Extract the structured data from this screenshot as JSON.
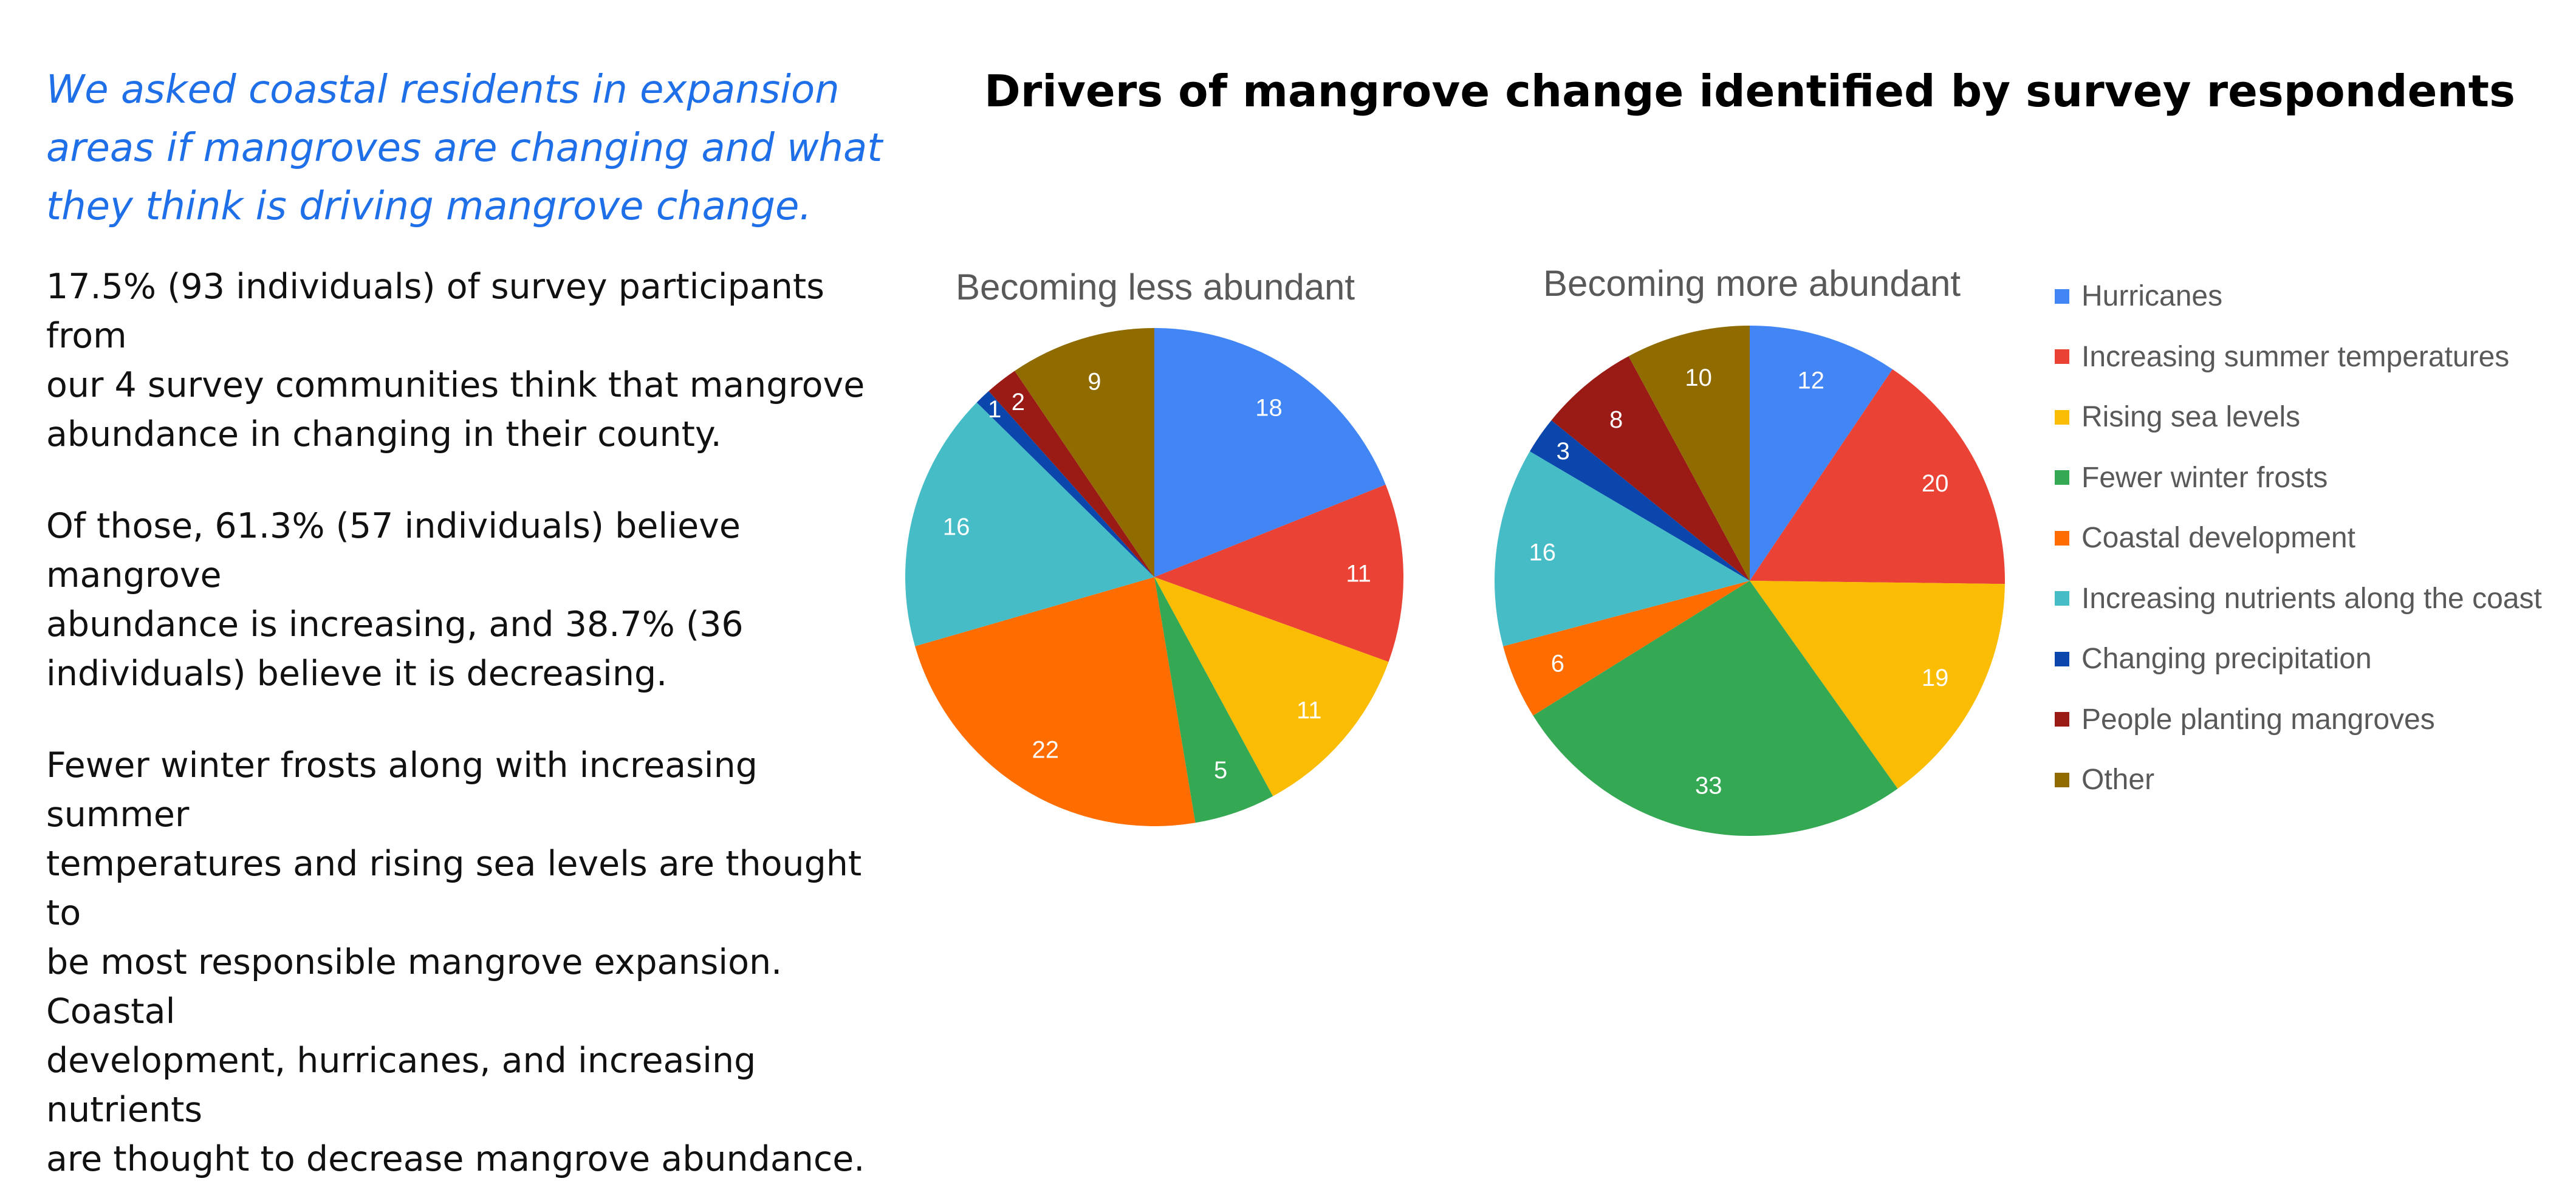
{
  "text_panel": {
    "intro": "We asked coastal residents in expansion\nareas if mangroves are changing and what\nthey think is driving mangrove change.",
    "paragraph_1": "17.5% (93 individuals) of survey participants from\nour 4 survey communities think that mangrove\nabundance in changing in their county.",
    "paragraph_2": "Of those, 61.3% (57 individuals) believe mangrove\nabundance is increasing, and 38.7% (36\nindividuals) believe it is decreasing.",
    "paragraph_3": "Fewer winter frosts along with increasing summer\ntemperatures and rising sea levels are thought to\nbe most responsible mangrove expansion. Coastal\ndevelopment, hurricanes, and increasing nutrients\nare thought to decrease mangrove abundance."
  },
  "chart_data": {
    "type": "pie",
    "title": "Drivers of mangrove change identified by survey respondents",
    "legend_position": "right",
    "categories": [
      "Hurricanes",
      "Increasing summer temperatures",
      "Rising sea levels",
      "Fewer winter frosts",
      "Coastal development",
      "Increasing nutrients along the coast",
      "Changing precipitation",
      "People planting mangroves",
      "Other"
    ],
    "colors": [
      "#4285f4",
      "#ea4335",
      "#fbbc04",
      "#34a853",
      "#ff6d01",
      "#46bdc6",
      "#0b46ac",
      "#9a1a15",
      "#8f6b00"
    ],
    "series": [
      {
        "name": "Becoming less abundant",
        "values": [
          18,
          11,
          11,
          5,
          22,
          16,
          1,
          2,
          9
        ]
      },
      {
        "name": "Becoming more abundant",
        "values": [
          12,
          20,
          19,
          33,
          6,
          16,
          3,
          8,
          10
        ]
      }
    ]
  }
}
